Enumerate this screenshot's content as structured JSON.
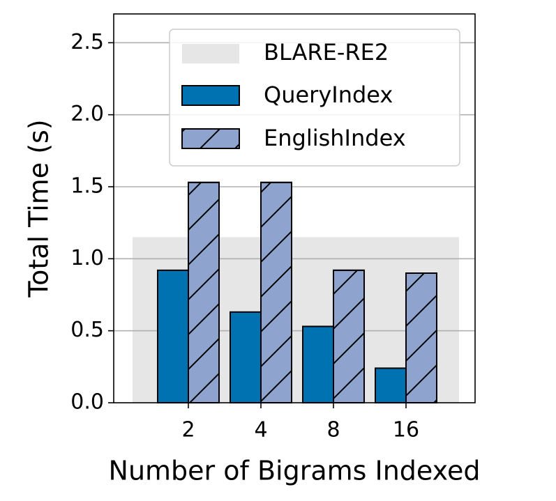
{
  "chart_data": {
    "type": "bar",
    "title": "",
    "xlabel": "Number of Bigrams Indexed",
    "ylabel": "Total Time (s)",
    "ylim": [
      0,
      2.7
    ],
    "yticks": [
      "0.0",
      "0.5",
      "1.0",
      "1.5",
      "2.0",
      "2.5"
    ],
    "categories": [
      "2",
      "4",
      "8",
      "16"
    ],
    "series": [
      {
        "name": "QueryIndex",
        "values": [
          0.92,
          0.63,
          0.53,
          0.24
        ],
        "color": "#0072b2",
        "pattern": "solid"
      },
      {
        "name": "EnglishIndex",
        "values": [
          1.53,
          1.53,
          0.92,
          0.9
        ],
        "color": "#8fa3cf",
        "pattern": "hatch"
      }
    ],
    "baseline": {
      "name": "BLARE-RE2",
      "value": 1.15,
      "color": "#e6e6e6"
    },
    "grid": true,
    "legend_position": "top-right"
  }
}
